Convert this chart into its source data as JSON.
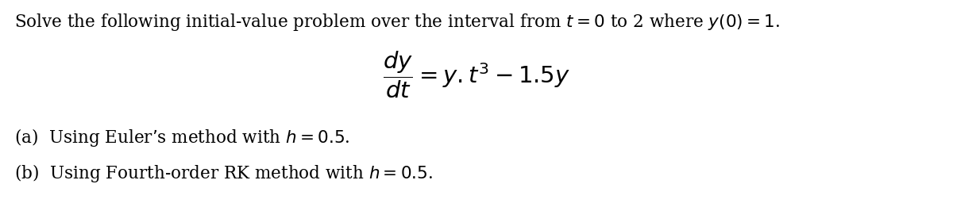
{
  "line1": "Solve the following initial-value problem over the interval from $t = 0$ to 2 where $y(0) = 1$.",
  "line_a": "(a)  Using Euler’s method with $h = 0.5$.",
  "line_b": "(b)  Using Fourth-order RK method with $h = 0.5$.",
  "background_color": "#ffffff",
  "text_color": "#000000",
  "fontsize_main": 15.5,
  "fontsize_eq": 21
}
